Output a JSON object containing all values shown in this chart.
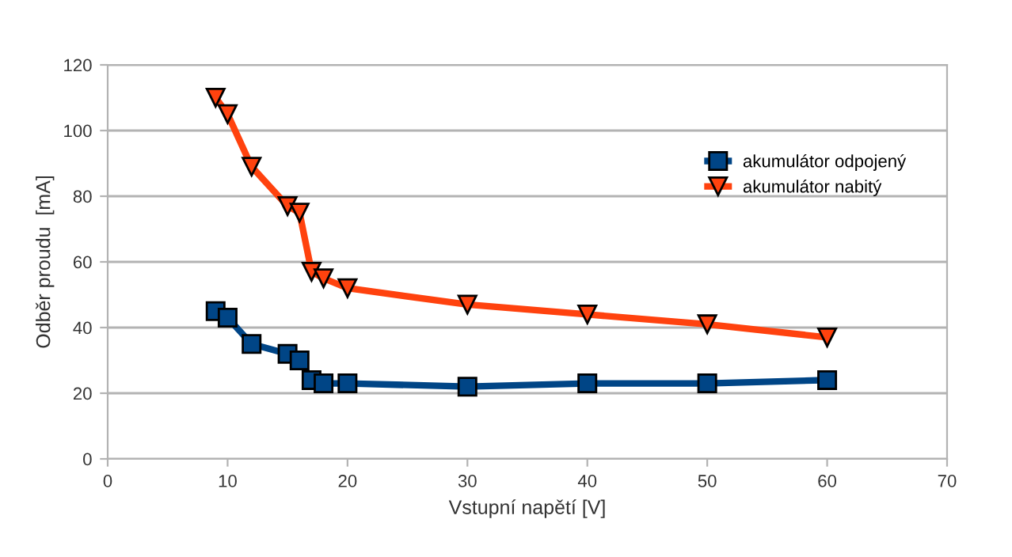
{
  "chart_data": {
    "type": "line",
    "xlabel": "Vstupní napětí [V]",
    "ylabel": "Odběr proudu  [mA]",
    "x": [
      9,
      10,
      12,
      15,
      16,
      17,
      18,
      20,
      30,
      40,
      50,
      60
    ],
    "series": [
      {
        "name": "akumulátor odpojený",
        "color": "#004586",
        "marker": "square",
        "values": [
          45,
          43,
          35,
          32,
          30,
          24,
          23,
          23,
          22,
          23,
          23,
          24
        ]
      },
      {
        "name": "akumulátor nabitý",
        "color": "#ff420e",
        "marker": "triangle",
        "values": [
          110,
          105,
          89,
          77,
          75,
          57,
          55,
          52,
          47,
          44,
          41,
          37
        ]
      }
    ],
    "xlim": [
      0,
      70
    ],
    "xticks": [
      0,
      10,
      20,
      30,
      40,
      50,
      60,
      70
    ],
    "ylim": [
      0,
      120
    ],
    "yticks": [
      0,
      20,
      40,
      60,
      80,
      100,
      120
    ],
    "grid": "y",
    "legend": "right",
    "line_style": "solid"
  }
}
